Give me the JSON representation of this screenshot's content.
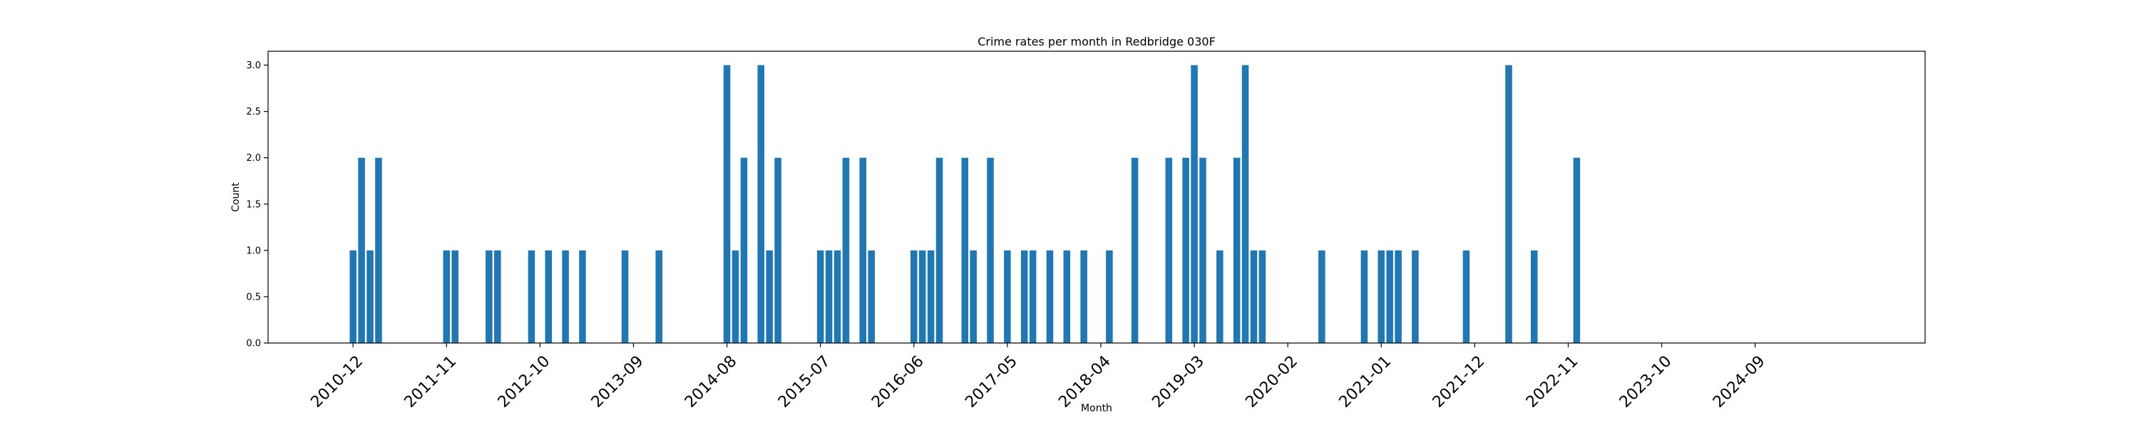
{
  "chart_data": {
    "type": "bar",
    "title": "Crime rates per month in Redbridge 030F",
    "xlabel": "Month",
    "ylabel": "Count",
    "ylim": [
      0,
      3.15
    ],
    "yticks": [
      "0.0",
      "0.5",
      "1.0",
      "1.5",
      "2.0",
      "2.5",
      "3.0"
    ],
    "xlim": [
      "2010-02",
      "2026-05"
    ],
    "xticks": [
      "2010-12",
      "2011-11",
      "2012-10",
      "2013-09",
      "2014-08",
      "2015-07",
      "2016-06",
      "2017-05",
      "2018-04",
      "2019-03",
      "2020-02",
      "2021-01",
      "2021-12",
      "2022-11",
      "2023-10",
      "2024-09"
    ],
    "bar_color": "#1f77b4",
    "grid": false,
    "legend": "none",
    "categories": [
      "2010-12",
      "2011-01",
      "2011-02",
      "2011-03",
      "2011-11",
      "2011-12",
      "2012-04",
      "2012-05",
      "2012-09",
      "2012-11",
      "2013-01",
      "2013-03",
      "2013-08",
      "2013-12",
      "2014-08",
      "2014-09",
      "2014-10",
      "2014-12",
      "2015-01",
      "2015-02",
      "2015-07",
      "2015-08",
      "2015-09",
      "2015-10",
      "2015-12",
      "2016-01",
      "2016-06",
      "2016-07",
      "2016-08",
      "2016-09",
      "2016-12",
      "2017-01",
      "2017-03",
      "2017-05",
      "2017-07",
      "2017-08",
      "2017-10",
      "2017-12",
      "2018-02",
      "2018-05",
      "2018-08",
      "2018-12",
      "2019-02",
      "2019-03",
      "2019-04",
      "2019-06",
      "2019-08",
      "2019-09",
      "2019-10",
      "2019-11",
      "2020-06",
      "2020-11",
      "2021-01",
      "2021-02",
      "2021-03",
      "2021-05",
      "2021-11",
      "2022-04",
      "2022-07",
      "2022-12"
    ],
    "values": [
      1,
      2,
      1,
      2,
      1,
      1,
      1,
      1,
      1,
      1,
      1,
      1,
      1,
      1,
      3,
      1,
      2,
      3,
      1,
      2,
      1,
      1,
      1,
      2,
      2,
      1,
      1,
      1,
      1,
      2,
      2,
      1,
      2,
      1,
      1,
      1,
      1,
      1,
      1,
      1,
      2,
      2,
      2,
      3,
      2,
      1,
      2,
      3,
      1,
      1,
      1,
      1,
      1,
      1,
      1,
      1,
      1,
      3,
      1,
      2
    ]
  }
}
